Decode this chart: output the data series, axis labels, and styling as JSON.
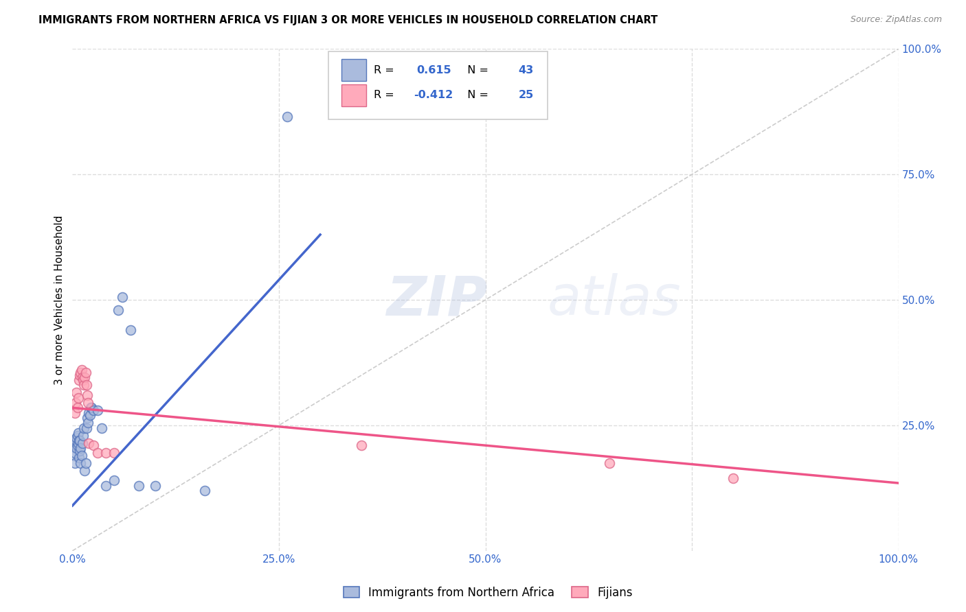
{
  "title": "IMMIGRANTS FROM NORTHERN AFRICA VS FIJIAN 3 OR MORE VEHICLES IN HOUSEHOLD CORRELATION CHART",
  "source": "Source: ZipAtlas.com",
  "ylabel": "3 or more Vehicles in Household",
  "legend_label1": "Immigrants from Northern Africa",
  "legend_label2": "Fijians",
  "r1": 0.615,
  "n1": 43,
  "r2": -0.412,
  "n2": 25,
  "blue_fill": "#AABBDD",
  "blue_edge": "#5577BB",
  "pink_fill": "#FFAABB",
  "pink_edge": "#DD6688",
  "blue_line_color": "#4466CC",
  "pink_line_color": "#EE5588",
  "diag_line_color": "#CCCCCC",
  "watermark_color": "#AABBDD",
  "blue_dots": [
    [
      0.001,
      0.215
    ],
    [
      0.002,
      0.19
    ],
    [
      0.003,
      0.175
    ],
    [
      0.003,
      0.195
    ],
    [
      0.004,
      0.21
    ],
    [
      0.004,
      0.22
    ],
    [
      0.005,
      0.205
    ],
    [
      0.005,
      0.225
    ],
    [
      0.006,
      0.21
    ],
    [
      0.006,
      0.23
    ],
    [
      0.007,
      0.215
    ],
    [
      0.007,
      0.235
    ],
    [
      0.008,
      0.22
    ],
    [
      0.008,
      0.185
    ],
    [
      0.009,
      0.2
    ],
    [
      0.009,
      0.22
    ],
    [
      0.01,
      0.175
    ],
    [
      0.01,
      0.205
    ],
    [
      0.011,
      0.19
    ],
    [
      0.012,
      0.215
    ],
    [
      0.013,
      0.23
    ],
    [
      0.014,
      0.245
    ],
    [
      0.015,
      0.16
    ],
    [
      0.016,
      0.175
    ],
    [
      0.017,
      0.245
    ],
    [
      0.018,
      0.265
    ],
    [
      0.019,
      0.255
    ],
    [
      0.02,
      0.275
    ],
    [
      0.021,
      0.27
    ],
    [
      0.022,
      0.285
    ],
    [
      0.023,
      0.285
    ],
    [
      0.025,
      0.28
    ],
    [
      0.03,
      0.28
    ],
    [
      0.035,
      0.245
    ],
    [
      0.04,
      0.13
    ],
    [
      0.05,
      0.14
    ],
    [
      0.055,
      0.48
    ],
    [
      0.06,
      0.505
    ],
    [
      0.07,
      0.44
    ],
    [
      0.08,
      0.13
    ],
    [
      0.1,
      0.13
    ],
    [
      0.16,
      0.12
    ],
    [
      0.26,
      0.865
    ]
  ],
  "pink_dots": [
    [
      0.003,
      0.275
    ],
    [
      0.004,
      0.295
    ],
    [
      0.005,
      0.315
    ],
    [
      0.006,
      0.285
    ],
    [
      0.007,
      0.305
    ],
    [
      0.008,
      0.34
    ],
    [
      0.009,
      0.35
    ],
    [
      0.01,
      0.355
    ],
    [
      0.011,
      0.36
    ],
    [
      0.012,
      0.345
    ],
    [
      0.013,
      0.34
    ],
    [
      0.014,
      0.33
    ],
    [
      0.015,
      0.345
    ],
    [
      0.016,
      0.355
    ],
    [
      0.017,
      0.33
    ],
    [
      0.018,
      0.31
    ],
    [
      0.019,
      0.295
    ],
    [
      0.02,
      0.215
    ],
    [
      0.025,
      0.21
    ],
    [
      0.03,
      0.195
    ],
    [
      0.04,
      0.195
    ],
    [
      0.05,
      0.195
    ],
    [
      0.35,
      0.21
    ],
    [
      0.65,
      0.175
    ],
    [
      0.8,
      0.145
    ]
  ],
  "blue_line": [
    [
      0.0,
      0.09
    ],
    [
      0.3,
      0.63
    ]
  ],
  "pink_line": [
    [
      0.0,
      0.285
    ],
    [
      1.0,
      0.135
    ]
  ],
  "diag_line": [
    [
      0.0,
      0.0
    ],
    [
      1.0,
      1.0
    ]
  ],
  "xlim": [
    0.0,
    1.0
  ],
  "ylim": [
    0.0,
    1.0
  ],
  "xticks": [
    0.0,
    0.25,
    0.5,
    0.75,
    1.0
  ],
  "xtick_labels": [
    "0.0%",
    "25.0%",
    "50.0%",
    "",
    "100.0%"
  ],
  "yticks_right": [
    0.25,
    0.5,
    0.75,
    1.0
  ],
  "ytick_labels_right": [
    "25.0%",
    "50.0%",
    "75.0%",
    "100.0%"
  ],
  "grid_color": "#DDDDDD",
  "background_color": "#FFFFFF"
}
